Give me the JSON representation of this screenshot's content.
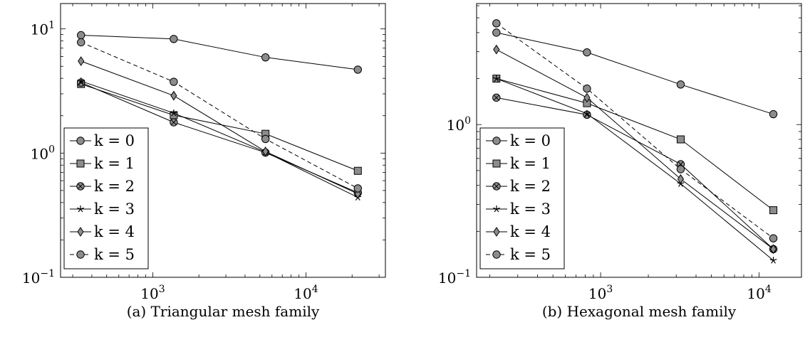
{
  "chart_data": [
    {
      "type": "line",
      "caption": "(a) Triangular mesh family",
      "title": "",
      "xlabel": "",
      "ylabel": "",
      "xscale": "log",
      "yscale": "log",
      "xlim": [
        250,
        33000
      ],
      "ylim": [
        0.1,
        16
      ],
      "x_ticks": [
        1000,
        10000
      ],
      "x_tick_labels": [
        {
          "base": "10",
          "exp": "3"
        },
        {
          "base": "10",
          "exp": "4"
        }
      ],
      "y_ticks": [
        0.1,
        1,
        10
      ],
      "y_tick_labels": [
        {
          "base": "10",
          "exp": "−1"
        },
        {
          "base": "10",
          "exp": "0"
        },
        {
          "base": "10",
          "exp": "1"
        }
      ],
      "grid": false,
      "legend_position": "bottom-left",
      "x": [
        340,
        1370,
        5440,
        21800
      ],
      "series": [
        {
          "name": "k = 0",
          "marker": "circle",
          "dash": false,
          "values": [
            8.9,
            8.3,
            5.9,
            4.7
          ]
        },
        {
          "name": "k = 1",
          "marker": "square",
          "dash": false,
          "values": [
            3.6,
            2.02,
            1.43,
            0.72
          ]
        },
        {
          "name": "k = 2",
          "marker": "otimes",
          "dash": false,
          "values": [
            3.7,
            1.77,
            1.01,
            0.48
          ]
        },
        {
          "name": "k = 3",
          "marker": "star",
          "dash": false,
          "values": [
            3.8,
            2.1,
            1.02,
            0.44
          ]
        },
        {
          "name": "k = 4",
          "marker": "diamond",
          "dash": false,
          "values": [
            5.5,
            2.9,
            1.03,
            0.47
          ]
        },
        {
          "name": "k = 5",
          "marker": "circle",
          "dash": true,
          "values": [
            7.8,
            3.75,
            1.3,
            0.52
          ]
        }
      ]
    },
    {
      "type": "line",
      "caption": "(b) Hexagonal mesh family",
      "title": "",
      "xlabel": "",
      "ylabel": "",
      "xscale": "log",
      "yscale": "log",
      "xlim": [
        165,
        18500
      ],
      "ylim": [
        0.1,
        6.2
      ],
      "x_ticks": [
        1000,
        10000
      ],
      "x_tick_labels": [
        {
          "base": "10",
          "exp": "3"
        },
        {
          "base": "10",
          "exp": "4"
        }
      ],
      "y_ticks": [
        0.1,
        1
      ],
      "y_tick_labels": [
        {
          "base": "10",
          "exp": "−1"
        },
        {
          "base": "10",
          "exp": "0"
        }
      ],
      "grid": false,
      "legend_position": "bottom-left",
      "x": [
        220,
        820,
        3200,
        12300
      ],
      "series": [
        {
          "name": "k = 0",
          "marker": "circle",
          "dash": false,
          "values": [
            4.0,
            2.97,
            1.83,
            1.17
          ]
        },
        {
          "name": "k = 1",
          "marker": "square",
          "dash": false,
          "values": [
            2.0,
            1.38,
            0.8,
            0.275
          ]
        },
        {
          "name": "k = 2",
          "marker": "otimes",
          "dash": false,
          "values": [
            1.5,
            1.16,
            0.55,
            0.153
          ]
        },
        {
          "name": "k = 3",
          "marker": "star",
          "dash": false,
          "values": [
            2.0,
            1.18,
            0.41,
            0.129
          ]
        },
        {
          "name": "k = 4",
          "marker": "diamond",
          "dash": false,
          "values": [
            3.1,
            1.5,
            0.44,
            0.153
          ]
        },
        {
          "name": "k = 5",
          "marker": "circle",
          "dash": true,
          "values": [
            4.6,
            1.72,
            0.51,
            0.18
          ]
        }
      ]
    }
  ]
}
